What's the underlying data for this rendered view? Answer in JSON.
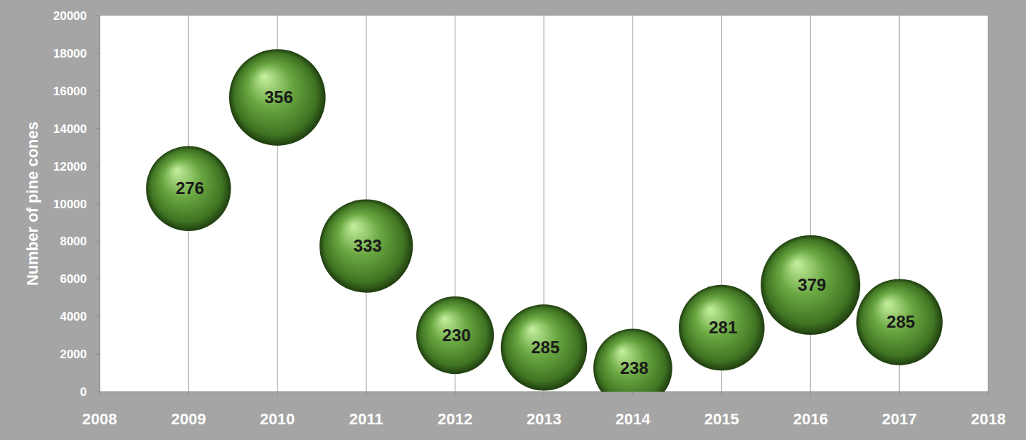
{
  "chart_data": {
    "type": "bubble",
    "y_label": "Number of pine cones",
    "x": [
      2009,
      2010,
      2011,
      2012,
      2013,
      2014,
      2015,
      2016,
      2017
    ],
    "values": [
      10800,
      15650,
      7750,
      3000,
      2350,
      1250,
      3400,
      5670,
      3700
    ],
    "sizes": [
      276,
      356,
      333,
      230,
      285,
      238,
      281,
      379,
      285
    ],
    "color": "#6aa842",
    "xlim": [
      2008,
      2018
    ],
    "xticks": [
      2008,
      2009,
      2010,
      2011,
      2012,
      2013,
      2014,
      2015,
      2016,
      2017,
      2018
    ],
    "ylim": [
      0,
      20000
    ],
    "yticks": [
      0,
      2000,
      4000,
      6000,
      8000,
      10000,
      12000,
      14000,
      16000,
      18000,
      20000
    ],
    "grid": true,
    "data_labels": true
  }
}
